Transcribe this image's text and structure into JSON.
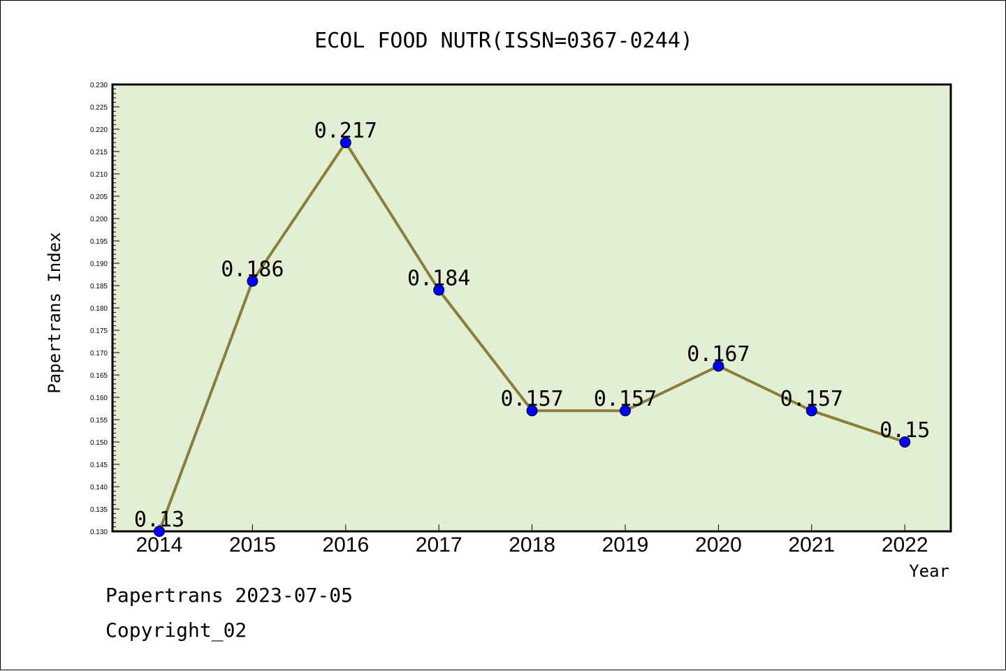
{
  "chart_data": {
    "type": "line",
    "title": "ECOL FOOD NUTR(ISSN=0367-0244)",
    "xlabel": "Year",
    "ylabel": "Papertrans Index",
    "categories": [
      "2014",
      "2015",
      "2016",
      "2017",
      "2018",
      "2019",
      "2020",
      "2021",
      "2022"
    ],
    "series": [
      {
        "values": [
          0.13,
          0.186,
          0.217,
          0.184,
          0.157,
          0.157,
          0.167,
          0.157,
          0.15
        ],
        "labels": [
          "0.13",
          "0.186",
          "0.217",
          "0.184",
          "0.157",
          "0.157",
          "0.167",
          "0.157",
          "0.15"
        ]
      }
    ],
    "ylim": [
      0.13,
      0.23
    ],
    "yticks": [
      "0.130",
      "0.135",
      "0.140",
      "0.145",
      "0.150",
      "0.155",
      "0.160",
      "0.165",
      "0.170",
      "0.175",
      "0.180",
      "0.185",
      "0.190",
      "0.195",
      "0.200",
      "0.205",
      "0.210",
      "0.215",
      "0.220",
      "0.225",
      "0.230"
    ],
    "grid": false,
    "colors": {
      "plot_background": "#e2efd5",
      "line": "#8b7d3a",
      "marker": "#0000ff"
    }
  },
  "footer": {
    "date_line": "Papertrans 2023-07-05",
    "copyright_line": "Copyright_02"
  }
}
